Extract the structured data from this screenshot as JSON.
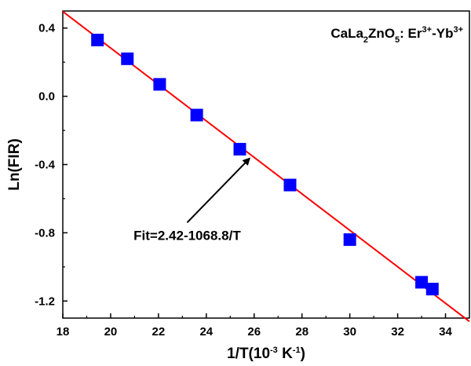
{
  "chart_data": {
    "type": "scatter",
    "title": {
      "parts": [
        {
          "text": "CaLa",
          "pos": "normal"
        },
        {
          "text": "2",
          "pos": "sub"
        },
        {
          "text": "ZnO",
          "pos": "normal"
        },
        {
          "text": "5",
          "pos": "sub"
        },
        {
          "text": ": Er",
          "pos": "normal"
        },
        {
          "text": "3+",
          "pos": "sup"
        },
        {
          "text": "-Yb",
          "pos": "normal"
        },
        {
          "text": "3+",
          "pos": "sup"
        }
      ]
    },
    "xlabel": {
      "parts": [
        {
          "text": "1/T(10",
          "pos": "normal"
        },
        {
          "text": "-3",
          "pos": "sup"
        },
        {
          "text": " K",
          "pos": "normal"
        },
        {
          "text": "-1",
          "pos": "sup"
        },
        {
          "text": ")",
          "pos": "normal"
        }
      ]
    },
    "ylabel": "Ln(FIR)",
    "xlim": [
      18,
      35
    ],
    "ylim": [
      -1.3,
      0.5
    ],
    "xticks": [
      18,
      20,
      22,
      24,
      26,
      28,
      30,
      32,
      34
    ],
    "xtick_labels": [
      "18",
      "20",
      "22",
      "24",
      "26",
      "28",
      "30",
      "32",
      "34"
    ],
    "yticks": [
      -1.2,
      -0.8,
      -0.4,
      0.0,
      0.4
    ],
    "ytick_labels": [
      "-1.2",
      "-0.8",
      "-0.4",
      "0.0",
      "0.4"
    ],
    "grid": false,
    "series": [
      {
        "marker": "square",
        "color": "#0000ff",
        "x": [
          19.45,
          20.7,
          22.05,
          23.6,
          25.4,
          27.5,
          30.0,
          33.0,
          33.45
        ],
        "y": [
          0.33,
          0.22,
          0.07,
          -0.11,
          -0.31,
          -0.52,
          -0.84,
          -1.09,
          -1.13
        ]
      },
      {
        "type": "line",
        "color": "#ff0000",
        "x": [
          18.0,
          35.0
        ],
        "y": [
          0.497,
          -1.32
        ]
      }
    ],
    "annotation": {
      "text": "Fit=2.42-1068.8/T",
      "arrow_from": [
        23.2,
        -0.74
      ],
      "arrow_to": [
        25.8,
        -0.365
      ]
    }
  }
}
